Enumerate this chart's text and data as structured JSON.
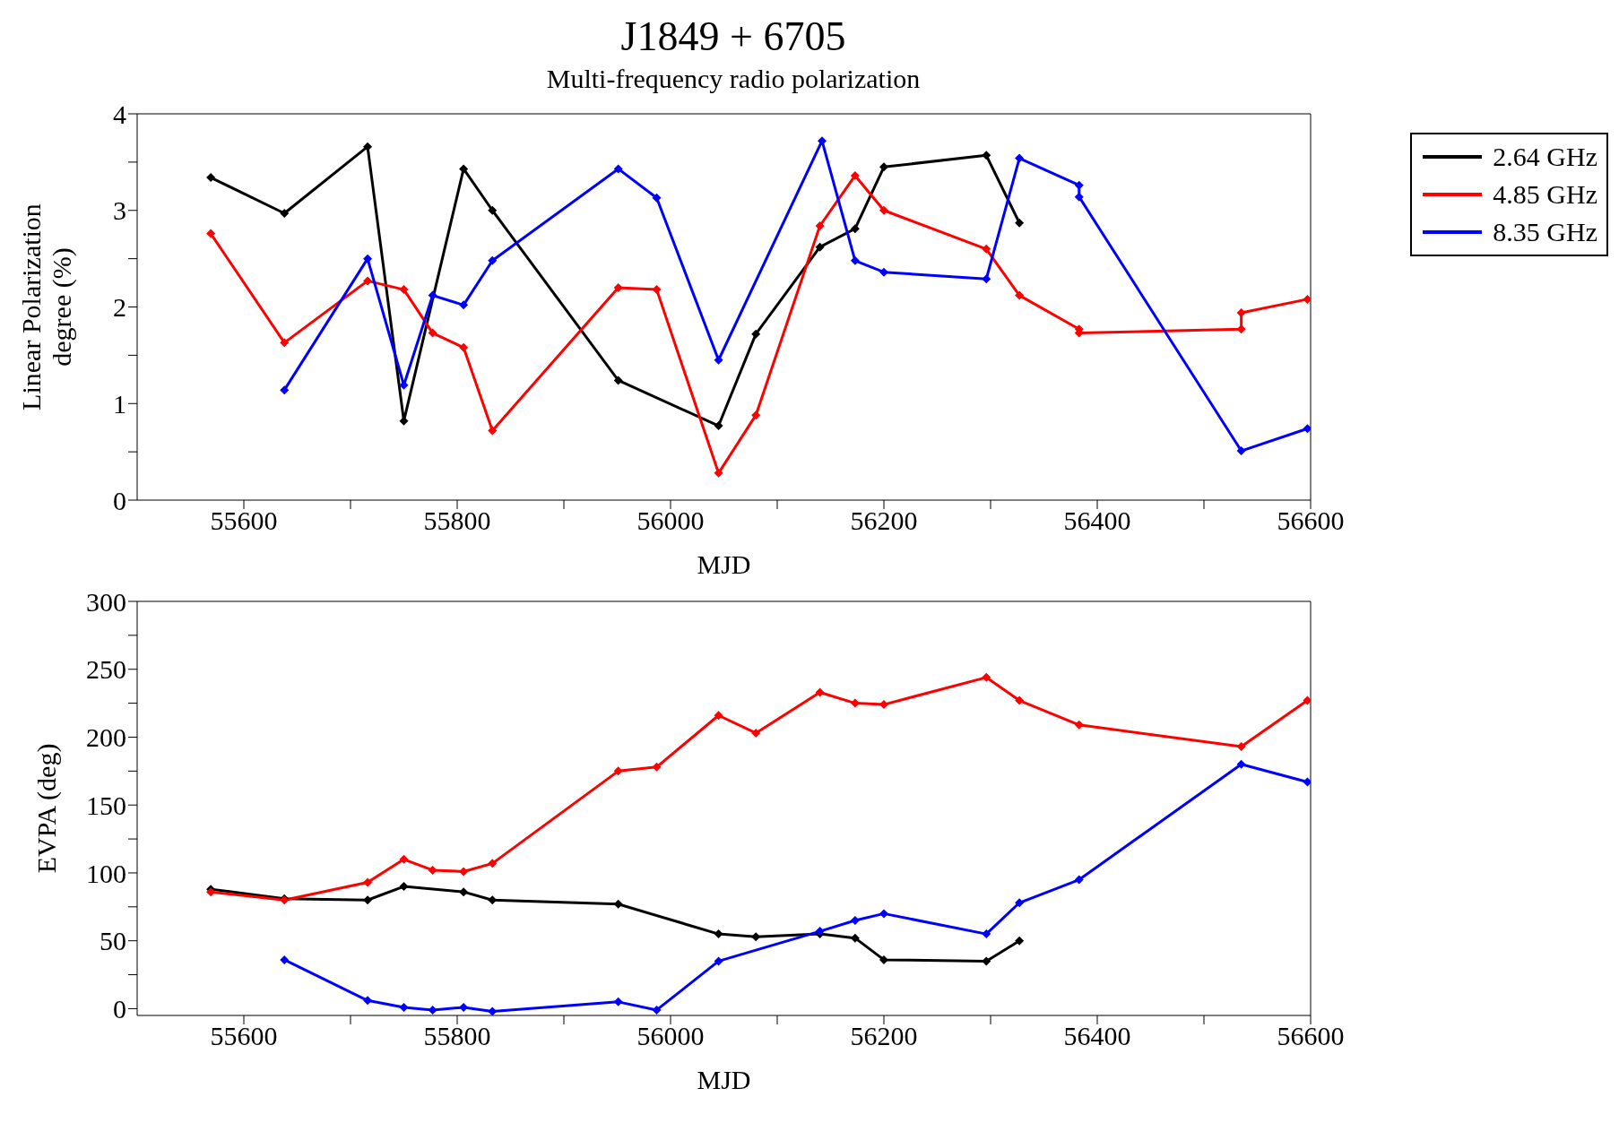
{
  "chart_data": [
    {
      "type": "line",
      "title": "J1849 + 6705",
      "subtitle": "Multi-frequency radio polarization",
      "xlabel": "MJD",
      "ylabel": "Linear Polarization degree (%)",
      "xlim": [
        55500,
        56600
      ],
      "xticks": [
        55600,
        {
          "value": 55700,
          "label": null
        },
        55800,
        {
          "value": 55900,
          "label": null
        },
        56000,
        {
          "value": 56100,
          "label": null
        },
        56200,
        {
          "value": 56300,
          "label": null
        },
        56400,
        {
          "value": 56500,
          "label": null
        },
        56600
      ],
      "ylim": [
        0,
        4
      ],
      "yticks": [
        0,
        {
          "value": 0.5,
          "label": null
        },
        1,
        {
          "value": 1.5,
          "label": null
        },
        2,
        {
          "value": 2.5,
          "label": null
        },
        3,
        {
          "value": 3.5,
          "label": null
        },
        4
      ],
      "legend": "top right",
      "marker": "diamond",
      "line_style": "solid",
      "series": [
        {
          "name": "2.64 GHz",
          "color": "#000000",
          "x": [
            55569,
            55638,
            55716,
            55750,
            55806,
            55833,
            55951,
            56045,
            56080,
            56140,
            56173,
            56200,
            56296,
            56327
          ],
          "values": [
            3.34,
            2.97,
            3.66,
            0.82,
            3.43,
            3.0,
            1.24,
            0.77,
            1.72,
            2.62,
            2.81,
            3.45,
            3.57,
            2.87
          ]
        },
        {
          "name": "4.85 GHz",
          "color": "#ff0000",
          "x": [
            55569,
            55638,
            55716,
            55750,
            55777,
            55806,
            55833,
            55951,
            55987,
            56045,
            56080,
            56140,
            56173,
            56200,
            56296,
            56327,
            56383,
            56383,
            56535,
            56535,
            56597
          ],
          "values": [
            2.76,
            1.63,
            2.27,
            2.18,
            1.73,
            1.58,
            0.72,
            2.2,
            2.18,
            0.28,
            0.88,
            2.84,
            3.36,
            3.0,
            2.6,
            2.12,
            1.77,
            1.73,
            1.77,
            1.94,
            2.08
          ]
        },
        {
          "name": "8.35 GHz",
          "color": "#0000ff",
          "x": [
            55638,
            55716,
            55750,
            55777,
            55806,
            55833,
            55951,
            55987,
            56045,
            56142,
            56173,
            56200,
            56296,
            56327,
            56383,
            56383,
            56535,
            56597
          ],
          "values": [
            1.14,
            2.5,
            1.19,
            2.12,
            2.02,
            2.48,
            3.43,
            3.13,
            1.45,
            3.72,
            2.48,
            2.36,
            2.29,
            3.54,
            3.26,
            3.14,
            0.51,
            0.74
          ]
        }
      ]
    },
    {
      "type": "line",
      "xlabel": "MJD",
      "ylabel": "EVPA (deg)",
      "xlim": [
        55500,
        56600
      ],
      "xticks": [
        55600,
        {
          "value": 55700,
          "label": null
        },
        55800,
        {
          "value": 55900,
          "label": null
        },
        56000,
        {
          "value": 56100,
          "label": null
        },
        56200,
        {
          "value": 56300,
          "label": null
        },
        56400,
        {
          "value": 56500,
          "label": null
        },
        56600
      ],
      "ylim": [
        -5,
        300
      ],
      "yticks": [
        0,
        {
          "value": 25,
          "label": null
        },
        50,
        {
          "value": 75,
          "label": null
        },
        100,
        {
          "value": 125,
          "label": null
        },
        150,
        {
          "value": 175,
          "label": null
        },
        200,
        {
          "value": 225,
          "label": null
        },
        250,
        {
          "value": 275,
          "label": null
        },
        300
      ],
      "marker": "diamond",
      "line_style": "solid",
      "series": [
        {
          "color": "#000000",
          "x": [
            55569,
            55638,
            55716,
            55750,
            55806,
            55833,
            55951,
            56045,
            56080,
            56140,
            56173,
            56200,
            56296,
            56327
          ],
          "values": [
            88,
            81,
            80,
            90,
            86,
            80,
            77,
            55,
            53,
            55,
            52,
            36,
            35,
            50
          ]
        },
        {
          "color": "#ff0000",
          "x": [
            55569,
            55638,
            55716,
            55750,
            55777,
            55806,
            55833,
            55951,
            55987,
            56045,
            56080,
            56140,
            56173,
            56200,
            56296,
            56327,
            56383,
            56535,
            56597
          ],
          "values": [
            86,
            80,
            93,
            110,
            102,
            101,
            107,
            175,
            178,
            216,
            203,
            233,
            225,
            224,
            244,
            227,
            209,
            193,
            227
          ]
        },
        {
          "color": "#0000ff",
          "x": [
            55638,
            55716,
            55750,
            55777,
            55806,
            55833,
            55951,
            55987,
            56045,
            56140,
            56173,
            56200,
            56296,
            56327,
            56383,
            56535,
            56597
          ],
          "values": [
            36,
            6,
            1,
            -1,
            1,
            -2,
            5,
            -1,
            35,
            57,
            65,
            70,
            55,
            78,
            95,
            180,
            167
          ]
        }
      ]
    }
  ]
}
